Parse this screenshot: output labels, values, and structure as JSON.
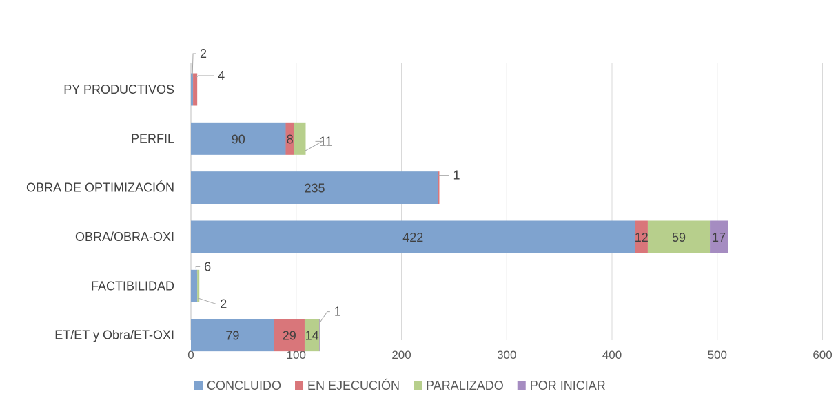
{
  "chart_data": {
    "type": "bar",
    "orientation": "horizontal",
    "stacked": true,
    "categories": [
      "PY PRODUCTIVOS",
      "PERFIL",
      "OBRA DE OPTIMIZACIÓN",
      "OBRA/OBRA-OXI",
      "FACTIBILIDAD",
      "ET/ET y Obra/ET-OXI"
    ],
    "series": [
      {
        "name": "CONCLUIDO",
        "color": "#7fa3cf",
        "values": [
          2,
          90,
          235,
          422,
          6,
          79
        ]
      },
      {
        "name": "EN EJECUCIÓN",
        "color": "#d9767a",
        "values": [
          4,
          8,
          1,
          12,
          0,
          29
        ]
      },
      {
        "name": "PARALIZADO",
        "color": "#b7cf8c",
        "values": [
          0,
          11,
          0,
          59,
          2,
          14
        ]
      },
      {
        "name": "POR INICIAR",
        "color": "#a58cc1",
        "values": [
          0,
          0,
          0,
          17,
          0,
          1
        ]
      }
    ],
    "data_labels": [
      {
        "category": "PY PRODUCTIVOS",
        "series": "CONCLUIDO",
        "text": "2",
        "callout": true
      },
      {
        "category": "PY PRODUCTIVOS",
        "series": "EN EJECUCIÓN",
        "text": "4",
        "callout": true
      },
      {
        "category": "PERFIL",
        "series": "CONCLUIDO",
        "text": "90",
        "callout": false
      },
      {
        "category": "PERFIL",
        "series": "EN EJECUCIÓN",
        "text": "8",
        "callout": false
      },
      {
        "category": "PERFIL",
        "series": "PARALIZADO",
        "text": "11",
        "callout": true
      },
      {
        "category": "OBRA DE OPTIMIZACIÓN",
        "series": "CONCLUIDO",
        "text": "235",
        "callout": false
      },
      {
        "category": "OBRA DE OPTIMIZACIÓN",
        "series": "EN EJECUCIÓN",
        "text": "1",
        "callout": true
      },
      {
        "category": "OBRA/OBRA-OXI",
        "series": "CONCLUIDO",
        "text": "422",
        "callout": false
      },
      {
        "category": "OBRA/OBRA-OXI",
        "series": "EN EJECUCIÓN",
        "text": "12",
        "callout": false
      },
      {
        "category": "OBRA/OBRA-OXI",
        "series": "PARALIZADO",
        "text": "59",
        "callout": false
      },
      {
        "category": "OBRA/OBRA-OXI",
        "series": "POR INICIAR",
        "text": "17",
        "callout": false
      },
      {
        "category": "FACTIBILIDAD",
        "series": "CONCLUIDO",
        "text": "6",
        "callout": true
      },
      {
        "category": "FACTIBILIDAD",
        "series": "PARALIZADO",
        "text": "2",
        "callout": true
      },
      {
        "category": "ET/ET y Obra/ET-OXI",
        "series": "CONCLUIDO",
        "text": "79",
        "callout": false
      },
      {
        "category": "ET/ET y Obra/ET-OXI",
        "series": "EN EJECUCIÓN",
        "text": "29",
        "callout": false
      },
      {
        "category": "ET/ET y Obra/ET-OXI",
        "series": "PARALIZADO",
        "text": "14",
        "callout": false
      },
      {
        "category": "ET/ET y Obra/ET-OXI",
        "series": "POR INICIAR",
        "text": "1",
        "callout": true
      }
    ],
    "x_ticks": [
      "0",
      "100",
      "200",
      "300",
      "400",
      "500",
      "600"
    ],
    "xlim": [
      0,
      600
    ],
    "title": "",
    "xlabel": "",
    "ylabel": "",
    "grid": "vertical",
    "legend_position": "bottom"
  }
}
